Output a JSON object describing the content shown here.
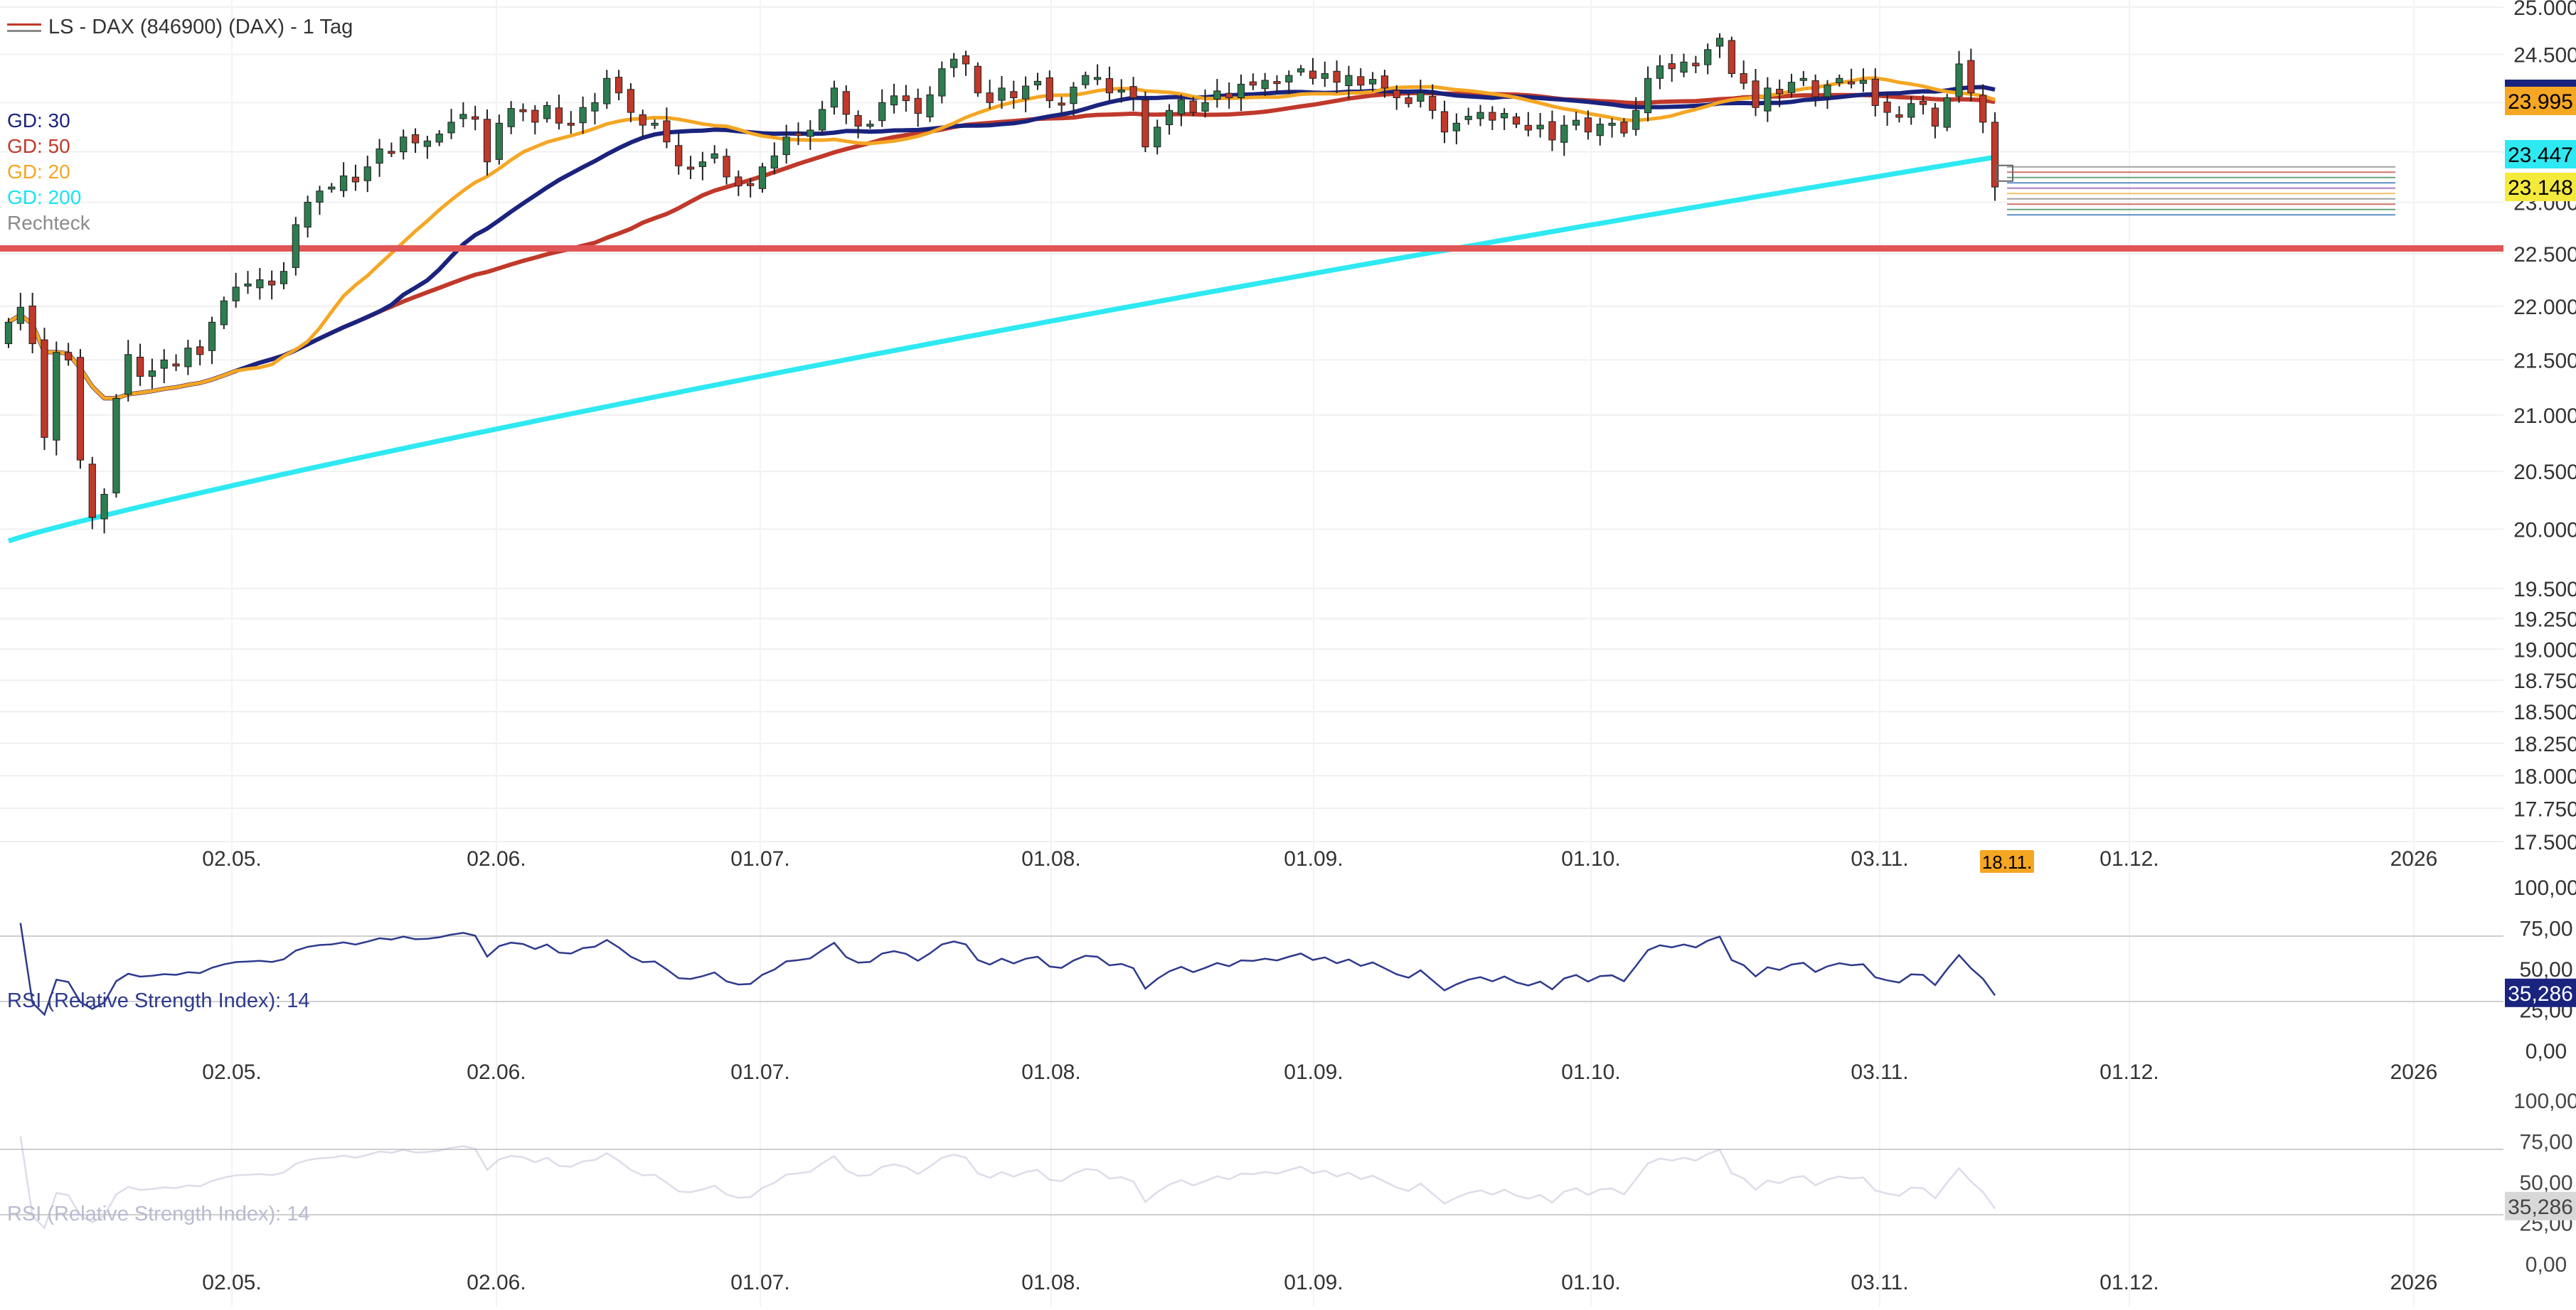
{
  "chart_title": "LS - DAX (846900) (DAX) - 1 Tag",
  "legend": [
    {
      "label": "GD: 30",
      "color": "#1a237e"
    },
    {
      "label": "GD: 50",
      "color": "#c0392b"
    },
    {
      "label": "GD: 20",
      "color": "#f5a623"
    },
    {
      "label": "GD: 200",
      "color": "#19e4f0"
    },
    {
      "label": "Rechteck",
      "color": "#8a8a8a"
    }
  ],
  "colors": {
    "up": "#2e7d4f",
    "down": "#c0392b",
    "ma30": "#1a237e",
    "ma50": "#c0392b",
    "ma20": "#f5a623",
    "ma200": "#2ee9f2",
    "rsi": "#2e3a8c",
    "level": "#e05555"
  },
  "chart_data": {
    "type": "candlestick",
    "x_ticks": [
      "02.05.",
      "02.06.",
      "01.07.",
      "01.08.",
      "01.09.",
      "01.10.",
      "03.11.",
      "01.12.",
      "2026"
    ],
    "current_date_label": "18.11.",
    "y_ticks": [
      "25.000",
      "24.500",
      "24.000",
      "23.500",
      "23.000",
      "22.500",
      "22.000",
      "21.500",
      "21.000",
      "20.500",
      "20.000",
      "19.500",
      "19.250",
      "19.000",
      "18.750",
      "18.500",
      "18.250",
      "18.000",
      "17.750",
      "17.500"
    ],
    "y_range": [
      17500,
      25000
    ],
    "price_labels": [
      {
        "value": "24.000",
        "bg": "#1a237e",
        "fg": "#ffffff"
      },
      {
        "value": "23.995",
        "bg": "#f5a623",
        "fg": "#000000"
      },
      {
        "value": "23.447",
        "bg": "#2ee9f2",
        "fg": "#000000"
      },
      {
        "value": "23.148",
        "bg": "#f4ea3c",
        "fg": "#000000"
      }
    ],
    "horizontal_line": 22550,
    "series_close": [
      21850,
      21990,
      21650,
      20800,
      21570,
      21500,
      20600,
      20100,
      20300,
      21150,
      21550,
      21350,
      21400,
      21500,
      21450,
      21610,
      21550,
      21850,
      22050,
      22180,
      22210,
      22250,
      22200,
      22330,
      22780,
      23000,
      23110,
      23150,
      23260,
      23200,
      23350,
      23530,
      23500,
      23650,
      23590,
      23610,
      23680,
      23800,
      23880,
      23830,
      23400,
      23790,
      23940,
      23910,
      23800,
      23970,
      23790,
      23770,
      23950,
      24000,
      24250,
      24100,
      23900,
      23770,
      23790,
      23600,
      23360,
      23340,
      23400,
      23480,
      23250,
      23160,
      23170,
      23350,
      23460,
      23650,
      23680,
      23720,
      23930,
      24150,
      23880,
      23760,
      23780,
      24000,
      24070,
      24020,
      23890,
      24080,
      24350,
      24450,
      24400,
      24100,
      24000,
      24150,
      24050,
      24170,
      24220,
      24020,
      23990,
      24160,
      24280,
      24260,
      24100,
      24130,
      24050,
      23550,
      23750,
      23920,
      24030,
      23900,
      24000,
      24120,
      24050,
      24190,
      24180,
      24230,
      24200,
      24280,
      24350,
      24250,
      24300,
      24210,
      24280,
      24180,
      24240,
      24150,
      24050,
      23990,
      24100,
      23920,
      23700,
      23790,
      23860,
      23900,
      23820,
      23890,
      23780,
      23720,
      23770,
      23620,
      23770,
      23820,
      23700,
      23780,
      23790,
      23690,
      23920,
      24250,
      24380,
      24350,
      24420,
      24380,
      24550,
      24670,
      24300,
      24200,
      23950,
      24150,
      24090,
      24210,
      24250,
      24060,
      24180,
      24250,
      24210,
      24230,
      23970,
      23900,
      23850,
      23990,
      23980,
      23760,
      24050,
      24400,
      24100,
      23800,
      23150
    ],
    "rsi": {
      "title": "RSI (Relative Strength Index): 14",
      "value_label": "35,286",
      "y_ticks": [
        "100,00",
        "75,00",
        "50,00",
        "25,00",
        "0,00"
      ]
    },
    "rsi2": {
      "title": "RSI (Relative Strength Index): 14",
      "value_label": "35,286",
      "y_ticks": [
        "100,00",
        "75,00",
        "50,00",
        "25,00",
        "0,00"
      ]
    }
  }
}
